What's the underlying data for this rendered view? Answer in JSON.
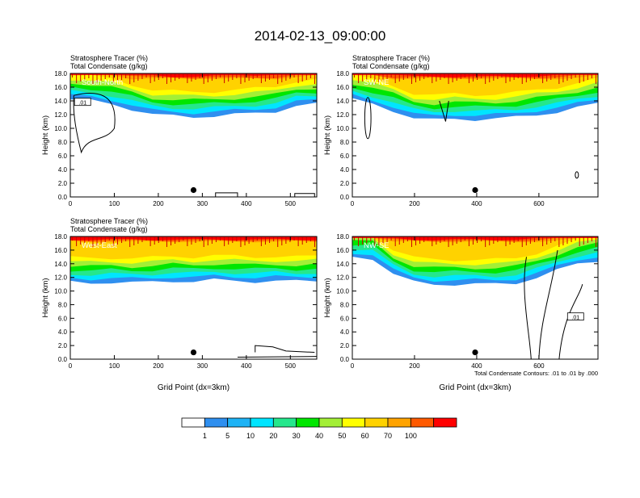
{
  "page_title": "2014-02-13_09:00:00",
  "colorbar": {
    "colors": [
      "#ffffff",
      "#2f8fef",
      "#1eb3f5",
      "#00e5ff",
      "#25e78c",
      "#00e600",
      "#a3ef36",
      "#ffff00",
      "#ffd200",
      "#ffa300",
      "#ff5a00",
      "#ff0000"
    ],
    "labels": [
      "1",
      "5",
      "10",
      "20",
      "30",
      "40",
      "50",
      "60",
      "70",
      "100"
    ]
  },
  "chart_data": [
    {
      "type": "heatmap",
      "title_left_1": "Stratosphere Tracer   (%)",
      "title_left_2": "Total Condensate   (g/kg)",
      "panel_label": "South-North",
      "ylabel": "Height (km)",
      "xlabel": "",
      "xlim": [
        0,
        560
      ],
      "ylim": [
        0,
        18
      ],
      "xticks": [
        "0",
        "100",
        "200",
        "300",
        "400",
        "500"
      ],
      "yticks": [
        "0.0",
        "2.0",
        "4.0",
        "6.0",
        "8.0",
        "10.0",
        "12.0",
        "14.0",
        "16.0",
        "18.0"
      ],
      "marker": {
        "x": 280,
        "y": 1.0
      },
      "contour_label": ".01",
      "tracer_base_km": [
        14.2,
        14.0,
        13.6,
        12.8,
        12.0,
        11.8,
        11.7,
        11.8,
        12.0,
        12.2,
        12.5,
        13.3,
        13.5
      ]
    },
    {
      "type": "heatmap",
      "title_left_1": "Stratosphere Tracer   (%)",
      "title_left_2": "Total Condensate   (g/kg)",
      "panel_label": "SW-NE",
      "ylabel": "Height (km)",
      "xlabel": "",
      "xlim": [
        0,
        790
      ],
      "ylim": [
        0,
        18
      ],
      "xticks": [
        "0",
        "200",
        "400",
        "600"
      ],
      "yticks": [
        "0.0",
        "2.0",
        "4.0",
        "6.0",
        "8.0",
        "10.0",
        "12.0",
        "14.0",
        "16.0",
        "18.0"
      ],
      "marker": {
        "x": 395,
        "y": 1.0
      },
      "contour_label": "",
      "tracer_base_km": [
        14.2,
        13.5,
        12.6,
        11.5,
        11.2,
        11.4,
        11.3,
        11.4,
        11.6,
        12.0,
        12.4,
        13.0,
        13.6
      ]
    },
    {
      "type": "heatmap",
      "title_left_1": "Stratosphere Tracer   (%)",
      "title_left_2": "Total Condensate   (g/kg)",
      "panel_label": "West-East",
      "ylabel": "Height (km)",
      "xlabel": "Grid Point (dx=3km)",
      "xlim": [
        0,
        560
      ],
      "ylim": [
        0,
        18
      ],
      "xticks": [
        "0",
        "100",
        "200",
        "300",
        "400",
        "500"
      ],
      "yticks": [
        "0.0",
        "2.0",
        "4.0",
        "6.0",
        "8.0",
        "10.0",
        "12.0",
        "14.0",
        "16.0",
        "18.0"
      ],
      "marker": {
        "x": 280,
        "y": 1.0
      },
      "contour_label": "",
      "tracer_base_km": [
        11.3,
        11.2,
        11.3,
        11.2,
        11.3,
        11.5,
        11.4,
        11.6,
        11.5,
        11.4,
        11.5,
        11.4,
        11.5
      ]
    },
    {
      "type": "heatmap",
      "title_left_1": "",
      "title_left_2": "",
      "panel_label": "NW-SE",
      "ylabel": "Height (km)",
      "xlabel": "Grid Point (dx=3km)",
      "xlim": [
        0,
        790
      ],
      "ylim": [
        0,
        18
      ],
      "xticks": [
        "0",
        "200",
        "400",
        "600"
      ],
      "yticks": [
        "0.0",
        "2.0",
        "4.0",
        "6.0",
        "8.0",
        "10.0",
        "12.0",
        "14.0",
        "16.0",
        "18.0"
      ],
      "marker": {
        "x": 395,
        "y": 1.0
      },
      "contour_label": ".01",
      "note": "Total Condensate Contours: .01 to .01 by .000",
      "tracer_base_km": [
        15.0,
        14.8,
        12.5,
        11.3,
        11.0,
        11.0,
        11.0,
        11.0,
        11.2,
        12.0,
        13.0,
        14.0,
        14.5
      ]
    }
  ]
}
